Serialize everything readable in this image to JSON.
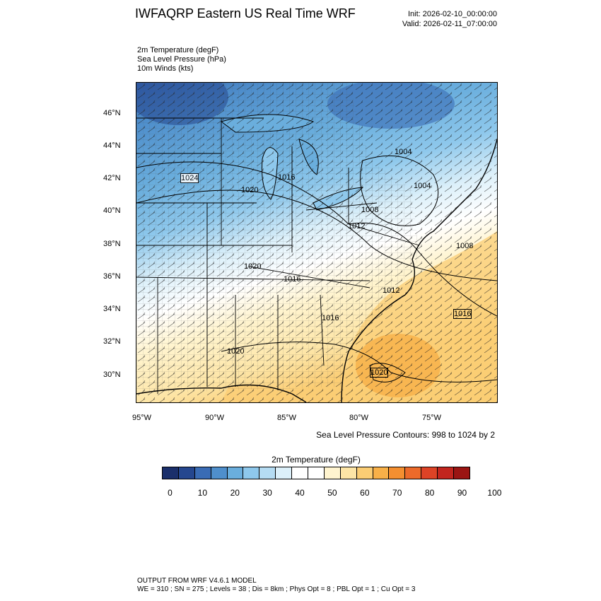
{
  "header": {
    "title": "IWFAQRP Eastern US Real Time WRF",
    "init": "Init: 2026-02-10_00:00:00",
    "valid": "Valid: 2026-02-11_07:00:00"
  },
  "fields": [
    "2m Temperature   (degF)",
    "Sea Level Pressure   (hPa)",
    "10m Winds   (kts)"
  ],
  "axes": {
    "lat_labels": [
      "46°N",
      "44°N",
      "42°N",
      "40°N",
      "38°N",
      "36°N",
      "34°N",
      "32°N",
      "30°N"
    ],
    "lon_labels": [
      "95°W",
      "90°W",
      "85°W",
      "80°W",
      "75°W"
    ]
  },
  "contours": {
    "note": "Sea Level Pressure Contours: 998 to 1024 by 2",
    "labels": [
      "1024",
      "1020",
      "1016",
      "1004",
      "1008",
      "1012",
      "1020",
      "1016",
      "1012",
      "1016",
      "1008",
      "1016",
      "1020",
      "1020",
      "1004"
    ]
  },
  "colorbar": {
    "title": "2m Temperature  (degF)",
    "labels": [
      "0",
      "10",
      "20",
      "30",
      "40",
      "50",
      "60",
      "70",
      "80",
      "90",
      "100"
    ],
    "colors": [
      "#1a2f6b",
      "#25478f",
      "#3a6cb5",
      "#4f8fcc",
      "#6aaedd",
      "#8ec8ec",
      "#b5dcf3",
      "#dcf0fa",
      "#ffffff",
      "#ffffff",
      "#fff4cf",
      "#fde5a6",
      "#fbcd74",
      "#f8b048",
      "#f48f30",
      "#ec6a2a",
      "#dd4326",
      "#c2251e",
      "#9b1513"
    ]
  },
  "footer": {
    "line1": "OUTPUT FROM WRF V4.6.1 MODEL",
    "line2": "WE = 310 ; SN = 275 ; Levels = 38 ; Dis = 8km ; Phys Opt = 8 ; PBL Opt = 1 ; Cu Opt = 3"
  }
}
